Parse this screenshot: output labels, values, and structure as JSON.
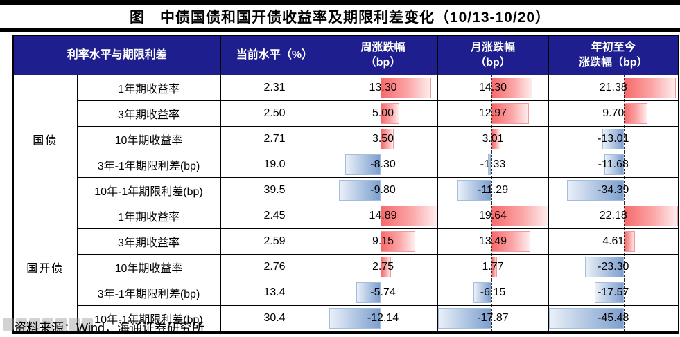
{
  "title": "图　中债国债和国开债收益率及期限利差变化（10/13-10/20）",
  "source": "资料来源：Wind，海通证券研究所",
  "colors": {
    "header_bg": "#1e1e8f",
    "header_text": "#ffffff",
    "positive_bar": "#f8696b",
    "negative_bar": "#7d9fce",
    "border": "#000000"
  },
  "table": {
    "headers": {
      "col_label": "利率水平与期限利差",
      "col_current": "当前水平（%）",
      "col_week_line1": "周涨跌幅",
      "col_week_line2": "（bp）",
      "col_month_line1": "月涨跌幅",
      "col_month_line2": "（bp）",
      "col_ytd_line1": "年初至今",
      "col_ytd_line2": "涨跌幅（bp）"
    },
    "groups": [
      {
        "name": "国债",
        "rows": [
          {
            "label": "1年期收益率",
            "current": "2.31",
            "week": "13.30",
            "month": "14.30",
            "ytd": "21.38"
          },
          {
            "label": "3年期收益率",
            "current": "2.50",
            "week": "5.00",
            "month": "12.97",
            "ytd": "9.70"
          },
          {
            "label": "10年期收益率",
            "current": "2.71",
            "week": "3.50",
            "month": "3.01",
            "ytd": "-13.01"
          },
          {
            "label": "3年-1年期限利差(bp)",
            "current": "19.0",
            "week": "-8.30",
            "month": "-1.33",
            "ytd": "-11.68"
          },
          {
            "label": "10年-1年期限利差(bp)",
            "current": "39.5",
            "week": "-9.80",
            "month": "-11.29",
            "ytd": "-34.39"
          }
        ]
      },
      {
        "name": "国开债",
        "rows": [
          {
            "label": "1年期收益率",
            "current": "2.45",
            "week": "14.89",
            "month": "19.64",
            "ytd": "22.18"
          },
          {
            "label": "3年期收益率",
            "current": "2.59",
            "week": "9.15",
            "month": "13.49",
            "ytd": "4.61"
          },
          {
            "label": "10年期收益率",
            "current": "2.76",
            "week": "2.75",
            "month": "1.77",
            "ytd": "-23.30"
          },
          {
            "label": "3年-1年期限利差(bp)",
            "current": "13.4",
            "week": "-5.74",
            "month": "-6.15",
            "ytd": "-17.57"
          },
          {
            "label": "10年-1年期限利差(bp)",
            "current": "30.4",
            "week": "-12.14",
            "month": "-17.87",
            "ytd": "-45.48"
          }
        ]
      }
    ]
  },
  "chart_data": {
    "type": "table",
    "title": "中债国债和国开债收益率及期限利差变化（10/13-10/20）",
    "columns": [
      "利率水平与期限利差",
      "当前水平（%）",
      "周涨跌幅（bp）",
      "月涨跌幅（bp）",
      "年初至今涨跌幅（bp）"
    ],
    "rows": [
      {
        "group": "国债",
        "label": "1年期收益率",
        "current": 2.31,
        "week": 13.3,
        "month": 14.3,
        "ytd": 21.38
      },
      {
        "group": "国债",
        "label": "3年期收益率",
        "current": 2.5,
        "week": 5.0,
        "month": 12.97,
        "ytd": 9.7
      },
      {
        "group": "国债",
        "label": "10年期收益率",
        "current": 2.71,
        "week": 3.5,
        "month": 3.01,
        "ytd": -13.01
      },
      {
        "group": "国债",
        "label": "3年-1年期限利差(bp)",
        "current": 19.0,
        "week": -8.3,
        "month": -1.33,
        "ytd": -11.68
      },
      {
        "group": "国债",
        "label": "10年-1年期限利差(bp)",
        "current": 39.5,
        "week": -9.8,
        "month": -11.29,
        "ytd": -34.39
      },
      {
        "group": "国开债",
        "label": "1年期收益率",
        "current": 2.45,
        "week": 14.89,
        "month": 19.64,
        "ytd": 22.18
      },
      {
        "group": "国开债",
        "label": "3年期收益率",
        "current": 2.59,
        "week": 9.15,
        "month": 13.49,
        "ytd": 4.61
      },
      {
        "group": "国开债",
        "label": "10年期收益率",
        "current": 2.76,
        "week": 2.75,
        "month": 1.77,
        "ytd": -23.3
      },
      {
        "group": "国开债",
        "label": "3年-1年期限利差(bp)",
        "current": 13.4,
        "week": -5.74,
        "month": -6.15,
        "ytd": -17.57
      },
      {
        "group": "国开债",
        "label": "10年-1年期限利差(bp)",
        "current": 30.4,
        "week": -12.14,
        "month": -17.87,
        "ytd": -45.48
      }
    ],
    "notes": "正值为红色数据条（向右），负值为蓝色数据条（向左），虚线为零轴",
    "bar_colors": {
      "positive": "#f8696b",
      "negative": "#7d9fce"
    }
  }
}
